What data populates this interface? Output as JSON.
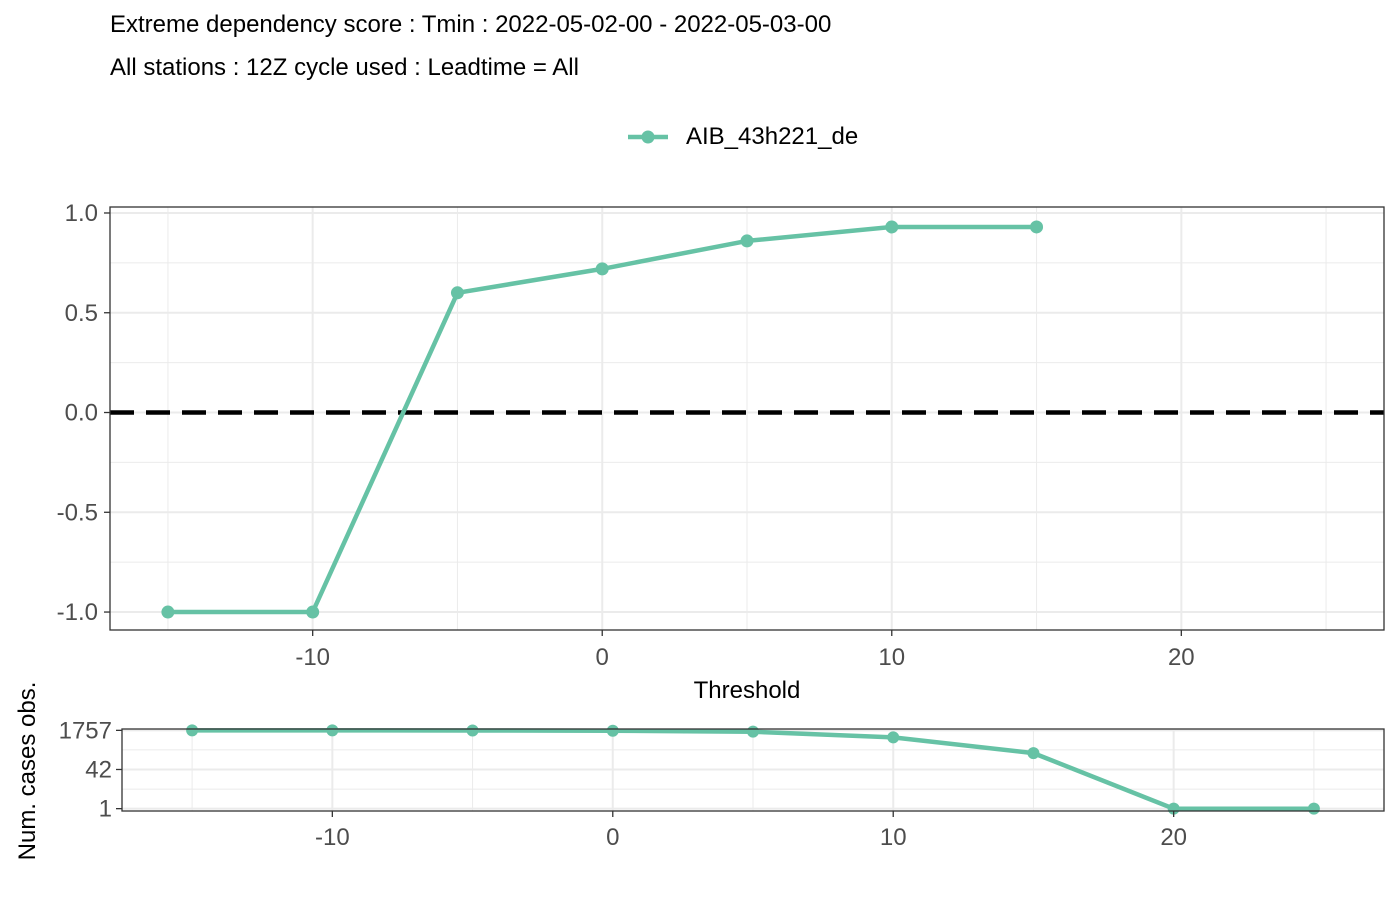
{
  "colors": {
    "series": "#66C2A5",
    "grid": "#EBEBEB",
    "axis_text": "#4D4D4D",
    "zero_line": "#000000"
  },
  "chart_data": [
    {
      "type": "line",
      "title": "Extreme dependency score : Tmin : 2022-05-02-00 - 2022-05-03-00",
      "subtitle": "All stations : 12Z cycle used : Leadtime = All",
      "xlabel": "Threshold",
      "ylabel": "",
      "xlim": [
        -17,
        27
      ],
      "ylim": [
        -1.09,
        1.03
      ],
      "x_ticks": [
        -10,
        0,
        10,
        20
      ],
      "x_tick_labels": [
        "-10",
        "0",
        "10",
        "20"
      ],
      "y_ticks": [
        -1.0,
        -0.5,
        0.0,
        0.5,
        1.0
      ],
      "y_tick_labels": [
        "-1.0",
        "-0.5",
        "0.0",
        "0.5",
        "1.0"
      ],
      "legend_position": "top",
      "reference_line": {
        "y": 0,
        "style": "dashed"
      },
      "series": [
        {
          "name": "AIB_43h221_de",
          "x": [
            -15,
            -10,
            -5,
            0,
            5,
            10,
            15
          ],
          "values": [
            -1.0,
            -1.0,
            0.6,
            0.72,
            0.86,
            0.93,
            0.93
          ]
        }
      ]
    },
    {
      "type": "line",
      "title": "",
      "xlabel": "",
      "ylabel": "Num. cases obs.",
      "y_scale": "log",
      "xlim": [
        -17.5,
        27.5
      ],
      "ylim": [
        0.8,
        2000
      ],
      "x_ticks": [
        -10,
        0,
        10,
        20
      ],
      "x_tick_labels": [
        "-10",
        "0",
        "10",
        "20"
      ],
      "y_ticks": [
        1,
        42,
        1757
      ],
      "y_tick_labels": [
        "1",
        "42",
        "1757"
      ],
      "series": [
        {
          "name": "AIB_43h221_de",
          "x": [
            -15,
            -10,
            -5,
            0,
            5,
            10,
            15,
            20,
            25
          ],
          "values": [
            1757,
            1757,
            1740,
            1700,
            1550,
            900,
            200,
            1,
            1
          ]
        }
      ]
    }
  ]
}
